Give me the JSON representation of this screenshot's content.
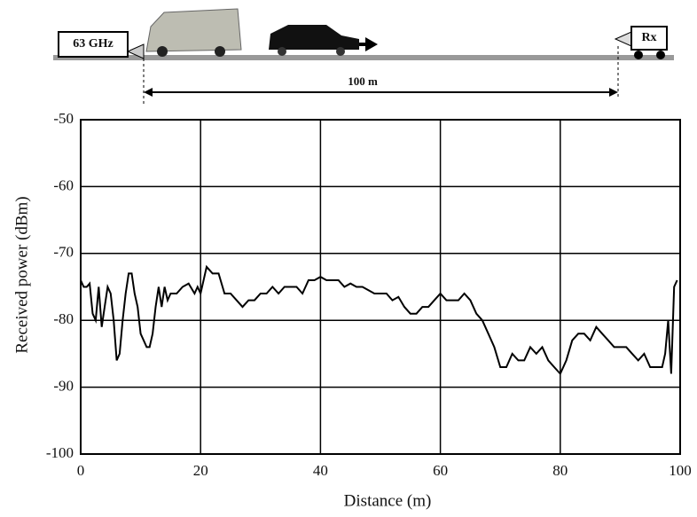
{
  "diagram": {
    "tx_label": "63 GHz",
    "rx_label": "Rx",
    "distance_label": "100 m"
  },
  "chart_data": {
    "type": "line",
    "x_label": "Distance (m)",
    "y_label": "Received power (dBm)",
    "xlim": [
      0,
      100
    ],
    "xticks": [
      0,
      20,
      40,
      60,
      80,
      100
    ],
    "ylim": [
      -100,
      -50
    ],
    "yticks": [
      -100,
      -90,
      -80,
      -70,
      -60,
      -50
    ],
    "grid": true,
    "color": "#000000",
    "x": [
      0,
      0.5,
      1,
      1.5,
      2,
      2.5,
      3,
      3.5,
      4,
      4.5,
      5,
      5.5,
      6,
      6.5,
      7,
      7.5,
      8,
      8.5,
      9,
      9.5,
      10,
      10.5,
      11,
      11.5,
      12,
      12.5,
      13,
      13.5,
      14,
      14.5,
      15,
      16,
      17,
      18,
      19,
      19.5,
      20,
      21,
      22,
      23,
      24,
      25,
      26,
      27,
      28,
      29,
      30,
      31,
      32,
      33,
      34,
      35,
      36,
      37,
      38,
      39,
      40,
      41,
      42,
      43,
      44,
      45,
      46,
      47,
      48,
      49,
      50,
      51,
      52,
      53,
      54,
      55,
      56,
      57,
      58,
      59,
      60,
      61,
      62,
      63,
      64,
      65,
      66,
      67,
      68,
      69,
      70,
      71,
      72,
      73,
      74,
      75,
      76,
      77,
      78,
      79,
      80,
      81,
      82,
      83,
      84,
      85,
      86,
      87,
      88,
      89,
      90,
      91,
      92,
      93,
      94,
      95,
      96,
      97,
      97.5,
      98,
      98.5,
      99,
      99.5
    ],
    "values": [
      -74,
      -75,
      -75,
      -74.5,
      -79,
      -80,
      -75,
      -81,
      -78,
      -75,
      -76,
      -80,
      -86,
      -85,
      -80,
      -76,
      -73,
      -73,
      -76,
      -78,
      -82,
      -83,
      -84,
      -84,
      -82,
      -78,
      -75,
      -78,
      -75,
      -77,
      -76,
      -76,
      -75,
      -74.5,
      -76,
      -75,
      -76,
      -72,
      -73,
      -73,
      -76,
      -76,
      -77,
      -78,
      -77,
      -77,
      -76,
      -76,
      -75,
      -76,
      -75,
      -75,
      -75,
      -76,
      -74,
      -74,
      -73.5,
      -74,
      -74,
      -74,
      -75,
      -74.5,
      -75,
      -75,
      -75.5,
      -76,
      -76,
      -76,
      -77,
      -76.5,
      -78,
      -79,
      -79,
      -78,
      -78,
      -77,
      -76,
      -77,
      -77,
      -77,
      -76,
      -77,
      -79,
      -80,
      -82,
      -84,
      -87,
      -87,
      -85,
      -86,
      -86,
      -84,
      -85,
      -84,
      -86,
      -87,
      -88,
      -86,
      -83,
      -82,
      -82,
      -83,
      -81,
      -82,
      -83,
      -84,
      -84,
      -84,
      -85,
      -86,
      -85,
      -87,
      -87,
      -87,
      -85,
      -80,
      -88,
      -75,
      -74
    ]
  }
}
